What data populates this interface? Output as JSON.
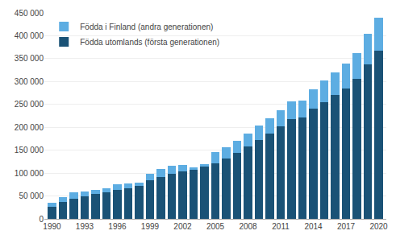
{
  "chart_data": {
    "type": "bar",
    "stacked": true,
    "x": [
      1990,
      1991,
      1992,
      1993,
      1994,
      1995,
      1996,
      1997,
      1998,
      1999,
      2000,
      2001,
      2002,
      2003,
      2004,
      2005,
      2006,
      2007,
      2008,
      2009,
      2010,
      2011,
      2012,
      2013,
      2014,
      2015,
      2016,
      2017,
      2018,
      2019,
      2020
    ],
    "series": [
      {
        "name": "Födda utomlands (första generationen)",
        "color": "#1a5276",
        "values": [
          26000,
          37000,
          44000,
          50000,
          55000,
          58000,
          63000,
          67000,
          72000,
          84000,
          91000,
          98000,
          103000,
          107000,
          114000,
          121000,
          132000,
          144000,
          159000,
          173000,
          187000,
          203000,
          218000,
          222000,
          240000,
          255000,
          271000,
          285000,
          305000,
          337000,
          367000
        ]
      },
      {
        "name": "Födda i Finland (andra generationen)",
        "color": "#5dade2",
        "values": [
          9000,
          11000,
          14000,
          9000,
          9000,
          8000,
          13000,
          10000,
          7000,
          14000,
          18000,
          18000,
          14000,
          5000,
          6000,
          25000,
          24000,
          27000,
          28000,
          31000,
          33000,
          35000,
          38000,
          36000,
          43000,
          47000,
          49000,
          54000,
          57000,
          68000,
          73000
        ]
      }
    ],
    "xlim": [
      1989.3,
      2020.7
    ],
    "xticks": [
      1990,
      1993,
      1996,
      1999,
      2002,
      2005,
      2008,
      2011,
      2014,
      2017,
      2020
    ],
    "ylim": [
      0,
      450000
    ],
    "yticks": [
      0,
      {
        "value": 50000,
        "label": "50 000"
      },
      {
        "value": 100000,
        "label": "100 000"
      },
      {
        "value": 150000,
        "label": "150 000"
      },
      {
        "value": 200000,
        "label": "200 000"
      },
      {
        "value": 250000,
        "label": "250 000"
      },
      {
        "value": 300000,
        "label": "300 000"
      },
      {
        "value": 350000,
        "label": "350 000"
      },
      {
        "value": 400000,
        "label": "400 000"
      },
      {
        "value": 450000,
        "label": "450 000"
      }
    ],
    "grid": true,
    "legend": "upper left"
  }
}
